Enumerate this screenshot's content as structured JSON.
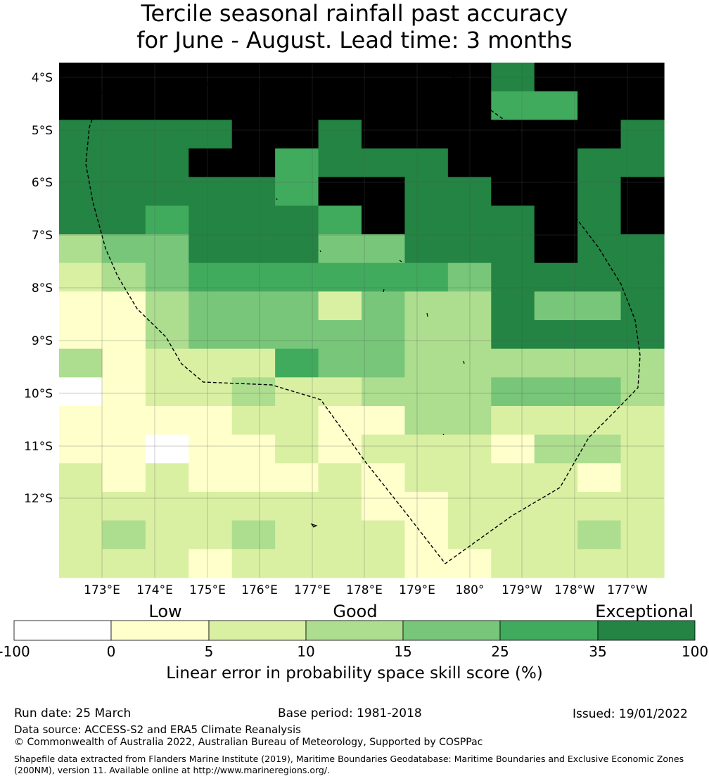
{
  "title": {
    "line1": "Tercile seasonal rainfall past accuracy",
    "line2": "for June - August. Lead time: 3 months"
  },
  "map": {
    "lat_labels": [
      "4°S",
      "5°S",
      "6°S",
      "7°S",
      "8°S",
      "9°S",
      "10°S",
      "11°S",
      "12°S"
    ],
    "lon_labels": [
      "173°E",
      "174°E",
      "175°E",
      "176°E",
      "177°E",
      "178°E",
      "179°E",
      "180°",
      "179°W",
      "178°W",
      "177°W"
    ],
    "cols": 14,
    "rows": 18,
    "grid": [
      "77777777776777",
      "77777777775577",
      "66667767777776",
      "66677566677766",
      "66666577667767",
      "66566657666767",
      "34466644666766",
      "23455555546666",
      "11344424336446",
      "11344444336666",
      "31222544333333",
      "01223223334443",
      "11112211332222",
      "11011212221332",
      "21211121222212",
      "22222221122222",
      "23223222122232",
      "22212222112222"
    ]
  },
  "colorbar": {
    "categories": [
      "Low",
      "Good",
      "Exceptional"
    ],
    "ticks": [
      "-100",
      "0",
      "5",
      "10",
      "15",
      "25",
      "35",
      "100"
    ],
    "colors": [
      "#ffffff",
      "#ffffcc",
      "#d9f0a3",
      "#addd8e",
      "#78c679",
      "#41ab5d",
      "#238443"
    ],
    "label": "Linear error in probability space skill score (%)"
  },
  "footer": {
    "run_date": "Run date: 25 March",
    "base_period": "Base period: 1981-2018",
    "issued": "Issued: 19/01/2022",
    "data_source": "Data source: ACCESS-S2 and ERA5 Climate Reanalysis",
    "copyright": "© Commonwealth of Australia 2022, Australian Bureau of Meteorology, Supported by COSPPac",
    "shapefile": "Shapefile data extracted from Flanders Marine Institute (2019), Maritime Boundaries Geodatabase: Maritime Boundaries and Exclusive Economic Zones (200NM), version 11. Available online at http://www.marineregions.org/."
  }
}
